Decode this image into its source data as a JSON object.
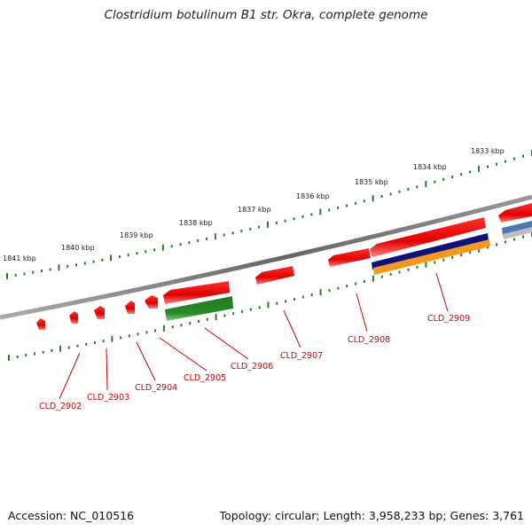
{
  "title": "Clostridium botulinum B1 str. Okra, complete genome",
  "footer": {
    "accession": "Accession: NC_010516",
    "summary": "Topology: circular; Length: 3,958,233 bp; Genes: 3,761"
  },
  "scale_labels": [
    "1841 kbp",
    "1840 kbp",
    "1839 kbp",
    "1838 kbp",
    "1837 kbp",
    "1836 kbp",
    "1835 kbp",
    "1834 kbp",
    "1833 kbp"
  ],
  "gene_labels": [
    "CLD_2902",
    "CLD_2903",
    "CLD_2904",
    "CLD_2905",
    "CLD_2906",
    "CLD_2907",
    "CLD_2908",
    "CLD_2909"
  ],
  "colors": {
    "backbone": "#808080",
    "gene_red": "#ee1111",
    "gene_green": "#2a8a2a",
    "gene_navy": "#10107a",
    "gene_orange": "#f09a20",
    "gene_blue": "#4a78b0",
    "scale_tick": "#2a7a2a",
    "label_red": "#cc0000"
  }
}
